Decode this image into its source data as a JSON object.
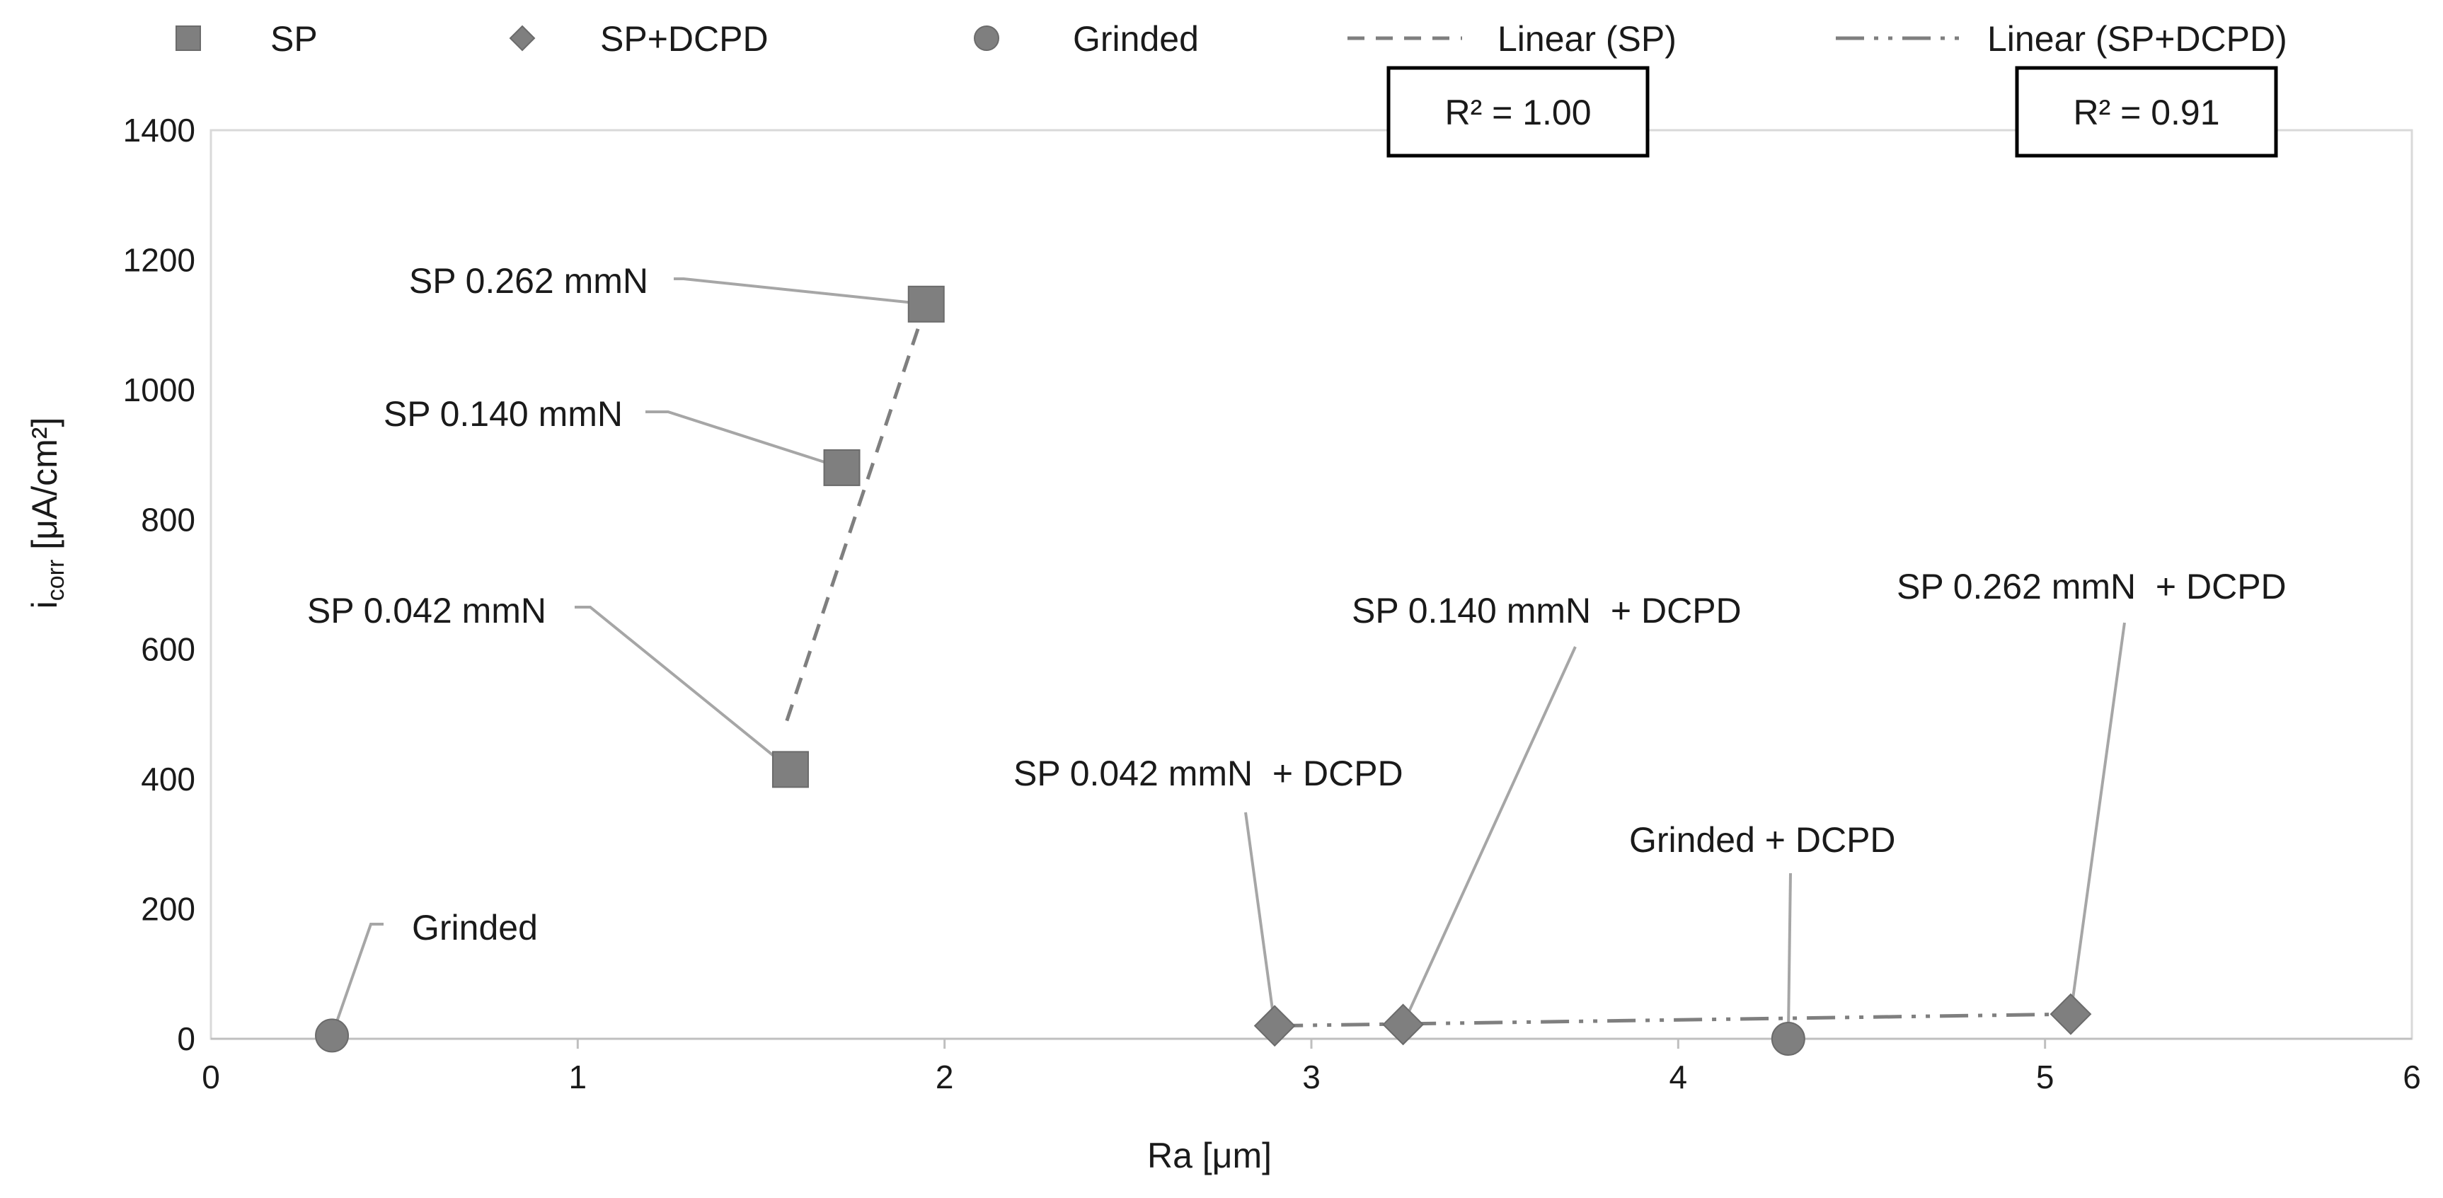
{
  "chart_data": {
    "type": "scatter",
    "xlabel": "Ra [μm]",
    "ylabel_main": "i",
    "ylabel_sub": "corr",
    "ylabel_unit": " [μA/cm²]",
    "xlim": [
      0,
      6
    ],
    "ylim": [
      0,
      1400
    ],
    "x_ticks": [
      0,
      1,
      2,
      3,
      4,
      5,
      6
    ],
    "y_ticks": [
      0,
      200,
      400,
      600,
      800,
      1000,
      1200,
      1400
    ],
    "legend": {
      "position": "top",
      "items": [
        {
          "key": "sp",
          "label": "SP",
          "marker": "square"
        },
        {
          "key": "spdcpd",
          "label": "SP+DCPD",
          "marker": "diamond"
        },
        {
          "key": "grinded",
          "label": "Grinded",
          "marker": "circle"
        },
        {
          "key": "lin_sp",
          "label": "Linear (SP)",
          "line": "dashed"
        },
        {
          "key": "lin_spdcpd",
          "label": "Linear (SP+DCPD)",
          "line": "dash-dot-dot"
        }
      ]
    },
    "series": [
      {
        "name": "SP",
        "marker": "square",
        "color": "#7f7f7f",
        "points": [
          {
            "x": 1.58,
            "y": 415,
            "label": "SP 0.042 mmN"
          },
          {
            "x": 1.72,
            "y": 880,
            "label": "SP 0.140 mmN"
          },
          {
            "x": 1.95,
            "y": 1132,
            "label": "SP 0.262 mmN"
          }
        ]
      },
      {
        "name": "SP+DCPD",
        "marker": "diamond",
        "color": "#7f7f7f",
        "points": [
          {
            "x": 2.9,
            "y": 20,
            "label": "SP 0.042 mmN  + DCPD"
          },
          {
            "x": 3.25,
            "y": 22,
            "label": "SP 0.140 mmN  + DCPD"
          },
          {
            "x": 5.07,
            "y": 38,
            "label": "SP 0.262 mmN  + DCPD"
          }
        ]
      },
      {
        "name": "Grinded",
        "marker": "circle",
        "color": "#7f7f7f",
        "points": [
          {
            "x": 0.33,
            "y": 5,
            "label": "Grinded"
          },
          {
            "x": 4.3,
            "y": 0,
            "label": "Grinded + DCPD"
          }
        ]
      }
    ],
    "trendlines": [
      {
        "name": "Linear (SP)",
        "style": "dashed",
        "from": [
          1.57,
          490
        ],
        "to": [
          1.95,
          1132
        ],
        "r2": "R² = 1.00"
      },
      {
        "name": "Linear (SP+DCPD)",
        "style": "dash-dot-dot",
        "from": [
          2.9,
          20
        ],
        "to": [
          5.07,
          38
        ],
        "r2": "R² = 0.91"
      }
    ],
    "colors": {
      "marker": "#7f7f7f",
      "leader": "#a6a6a6",
      "trend": "#7f7f7f",
      "grid_border": "#d9d9d9",
      "axis": "#bfbfbf"
    }
  }
}
